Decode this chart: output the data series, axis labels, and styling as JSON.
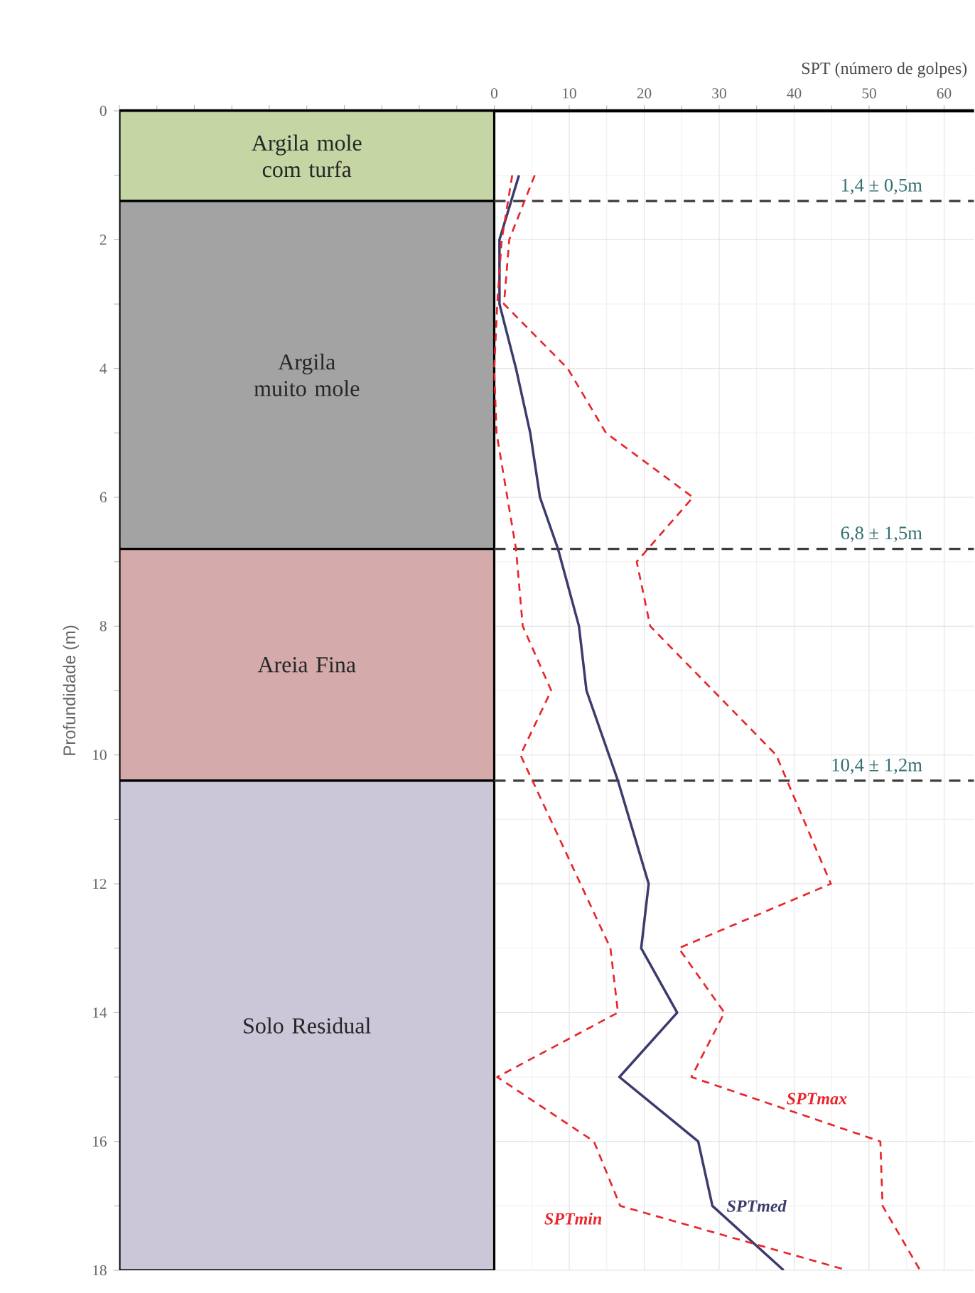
{
  "chart_data": {
    "type": "line",
    "xlabel": "SPT (número de golpes)",
    "ylabel": "Profundidade (m)",
    "xlim": [
      -50,
      64
    ],
    "ylim": [
      18,
      0
    ],
    "xticks": [
      {
        "value": -50,
        "label": null
      },
      {
        "value": -40,
        "label": null
      },
      {
        "value": -30,
        "label": null
      },
      {
        "value": -20,
        "label": null
      },
      {
        "value": -10,
        "label": null
      },
      0,
      10,
      20,
      30,
      40,
      50,
      60
    ],
    "yticks": [
      0,
      2,
      4,
      6,
      8,
      10,
      12,
      14,
      16,
      18
    ],
    "grid": true,
    "series": [
      {
        "name": "SPTmax",
        "color": "#e8262b",
        "line_style": "dashed",
        "x": [
          5.4,
          2,
          1.3,
          9.8,
          14.9,
          26.5,
          19,
          20.8,
          37.6,
          44.9,
          24.6,
          30.7,
          26.3,
          51.5,
          51.8,
          56.8
        ],
        "values": [
          1,
          2,
          3,
          4,
          5,
          6,
          7,
          8,
          10,
          12,
          13,
          14,
          15,
          16,
          17,
          18
        ]
      },
      {
        "name": "SPTmed",
        "color": "#3c3b6e",
        "line_style": "solid",
        "x": [
          3.3,
          0.7,
          0.7,
          2.9,
          4.8,
          6.1,
          8.5,
          11.3,
          12.3,
          16.5,
          20.6,
          19.6,
          24.4,
          16.7,
          27.2,
          29.1,
          38.6
        ],
        "values": [
          1,
          2,
          3,
          4,
          5,
          6,
          6.8,
          8,
          9,
          10.4,
          12,
          13,
          14,
          15,
          16,
          17,
          18
        ]
      },
      {
        "name": "SPTmin",
        "color": "#e8262b",
        "line_style": "dashed",
        "x": [
          2.4,
          1,
          0.4,
          0,
          0.3,
          2.9,
          3.8,
          7.6,
          3.5,
          15.5,
          16.5,
          0.4,
          13.3,
          16.8,
          47.1
        ],
        "values": [
          1,
          2,
          3,
          4,
          5,
          6.8,
          8,
          9,
          10,
          13,
          14,
          15,
          16,
          17,
          18
        ]
      }
    ],
    "bands": [
      {
        "axis": "y",
        "from": 0,
        "to": 1.4,
        "label": "Argila mole com turfa",
        "color": "#c5d5a4"
      },
      {
        "axis": "y",
        "from": 1.4,
        "to": 6.8,
        "label": "Argila muito mole",
        "color": "#a3a3a3"
      },
      {
        "axis": "y",
        "from": 6.8,
        "to": 10.4,
        "label": "Areia Fina",
        "color": "#d4aaaa"
      },
      {
        "axis": "y",
        "from": 10.4,
        "to": 18,
        "label": "Solo Residual",
        "color": "#ccc6d9"
      }
    ],
    "ref_lines": [
      {
        "axis": "y",
        "value": 1.4,
        "label": "1,4 ± 0,5m",
        "color": "#3d3d3d",
        "line_style": "dashed"
      },
      {
        "axis": "y",
        "value": 6.8,
        "label": "6,8 ± 1,5m",
        "color": "#3d3d3d",
        "line_style": "dashed"
      },
      {
        "axis": "y",
        "value": 10.4,
        "label": "10,4 ± 1,2m",
        "color": "#3d3d3d",
        "line_style": "dashed"
      }
    ]
  }
}
